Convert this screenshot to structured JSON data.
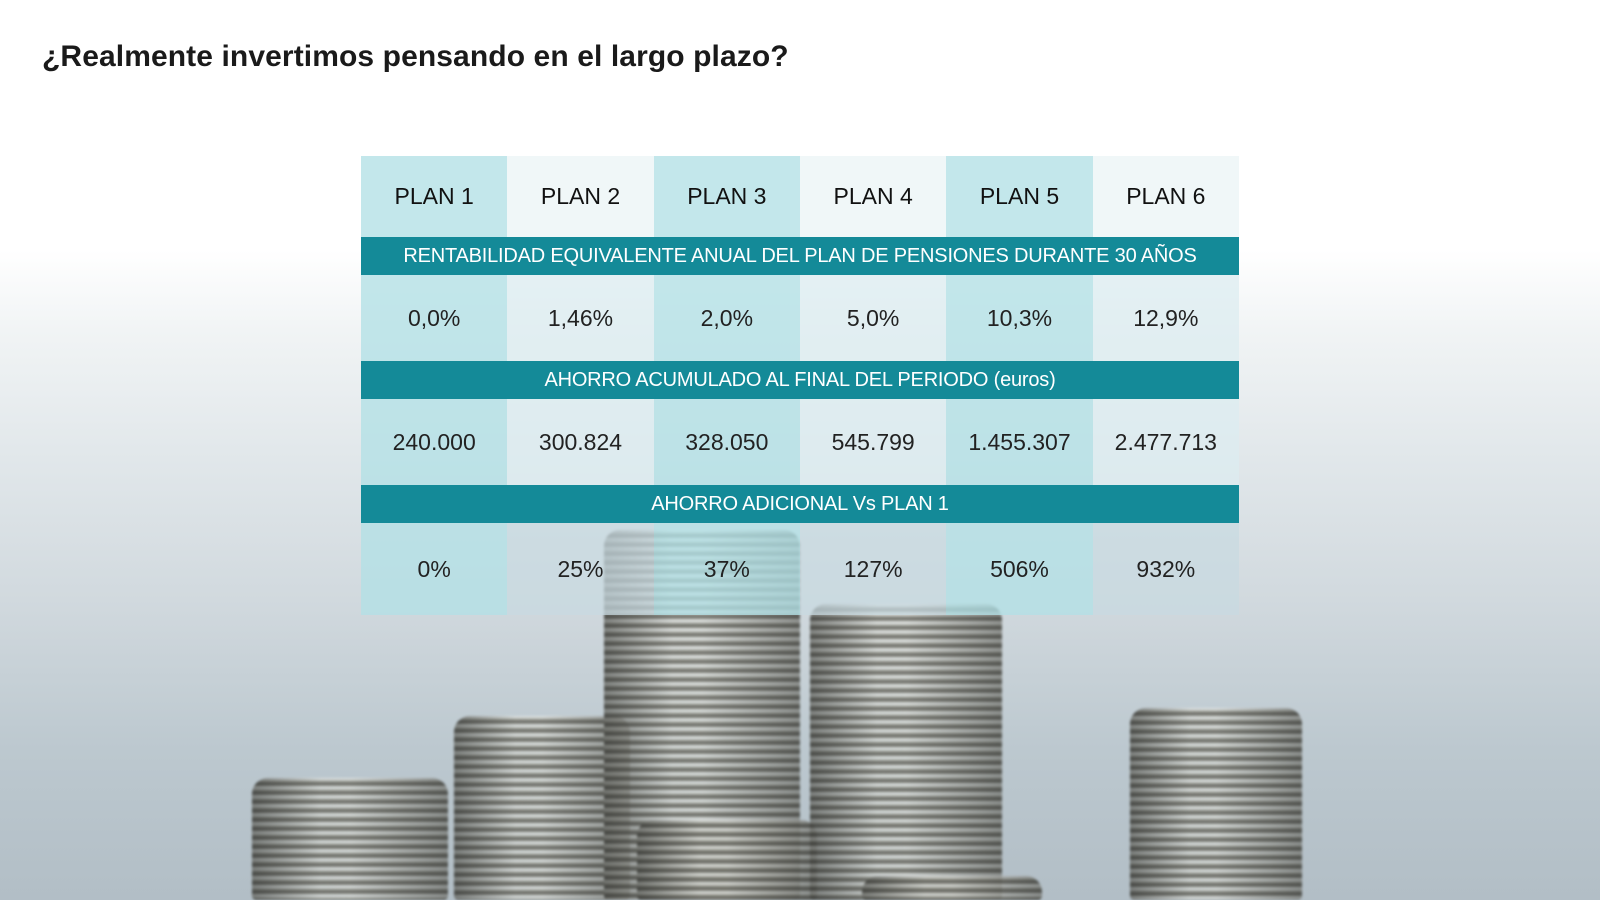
{
  "title": "¿Realmente invertimos pensando en el largo plazo?",
  "table": {
    "headers": [
      "PLAN 1",
      "PLAN 2",
      "PLAN 3",
      "PLAN 4",
      "PLAN 5",
      "PLAN 6"
    ],
    "sections": [
      {
        "label": "RENTABILIDAD EQUIVALENTE ANUAL DEL PLAN DE PENSIONES DURANTE 30 AÑOS",
        "values": [
          "0,0%",
          "1,46%",
          "2,0%",
          "5,0%",
          "10,3%",
          "12,9%"
        ]
      },
      {
        "label": "AHORRO ACUMULADO AL FINAL DEL PERIODO (euros)",
        "values": [
          "240.000",
          "300.824",
          "328.050",
          "545.799",
          "1.455.307",
          "2.477.713"
        ]
      },
      {
        "label": "AHORRO ADICIONAL Vs PLAN 1",
        "values": [
          "0%",
          "25%",
          "37%",
          "127%",
          "506%",
          "932%"
        ]
      }
    ]
  },
  "background": {
    "image": "coin-stacks-photo",
    "accent_color": "#148a98"
  }
}
